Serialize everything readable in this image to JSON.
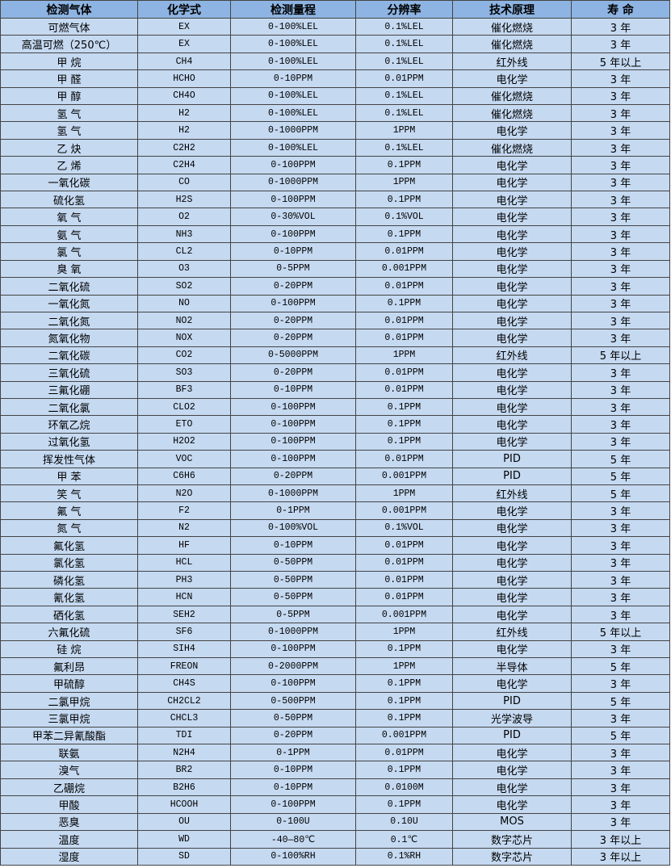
{
  "table": {
    "headers": [
      "检测气体",
      "化学式",
      "检测量程",
      "分辨率",
      "技术原理",
      "寿 命"
    ],
    "rows": [
      [
        "可燃气体",
        "EX",
        "0-100%LEL",
        "0.1%LEL",
        "催化燃烧",
        "3 年"
      ],
      [
        "高温可燃（250℃）",
        "EX",
        "0-100%LEL",
        "0.1%LEL",
        "催化燃烧",
        "3 年"
      ],
      [
        "甲 烷",
        "CH4",
        "0-100%LEL",
        "0.1%LEL",
        "红外线",
        "5 年以上"
      ],
      [
        "甲 醛",
        "HCHO",
        "0-10PPM",
        "0.01PPM",
        "电化学",
        "3 年"
      ],
      [
        "甲 醇",
        "CH4O",
        "0-100%LEL",
        "0.1%LEL",
        "催化燃烧",
        "3 年"
      ],
      [
        "氢 气",
        "H2",
        "0-100%LEL",
        "0.1%LEL",
        "催化燃烧",
        "3 年"
      ],
      [
        "氢 气",
        "H2",
        "0-1000PPM",
        "1PPM",
        "电化学",
        "3 年"
      ],
      [
        "乙 炔",
        "C2H2",
        "0-100%LEL",
        "0.1%LEL",
        "催化燃烧",
        "3 年"
      ],
      [
        "乙 烯",
        "C2H4",
        "0-100PPM",
        "0.1PPM",
        "电化学",
        "3 年"
      ],
      [
        "一氧化碳",
        "CO",
        "0-1000PPM",
        "1PPM",
        "电化学",
        "3 年"
      ],
      [
        "硫化氢",
        "H2S",
        "0-100PPM",
        "0.1PPM",
        "电化学",
        "3 年"
      ],
      [
        "氧 气",
        "O2",
        "0-30%VOL",
        "0.1%VOL",
        "电化学",
        "3 年"
      ],
      [
        "氨 气",
        "NH3",
        "0-100PPM",
        "0.1PPM",
        "电化学",
        "3 年"
      ],
      [
        "氯 气",
        "CL2",
        "0-10PPM",
        "0.01PPM",
        "电化学",
        "3 年"
      ],
      [
        "臭 氧",
        "O3",
        "0-5PPM",
        "0.001PPM",
        "电化学",
        "3 年"
      ],
      [
        "二氧化硫",
        "SO2",
        "0-20PPM",
        "0.01PPM",
        "电化学",
        "3 年"
      ],
      [
        "一氧化氮",
        "NO",
        "0-100PPM",
        "0.1PPM",
        "电化学",
        "3 年"
      ],
      [
        "二氧化氮",
        "NO2",
        "0-20PPM",
        "0.01PPM",
        "电化学",
        "3 年"
      ],
      [
        "氮氧化物",
        "NOX",
        "0-20PPM",
        "0.01PPM",
        "电化学",
        "3 年"
      ],
      [
        "二氧化碳",
        "CO2",
        "0-5000PPM",
        "1PPM",
        "红外线",
        "5 年以上"
      ],
      [
        "三氧化硫",
        "SO3",
        "0-20PPM",
        "0.01PPM",
        "电化学",
        "3 年"
      ],
      [
        "三氟化硼",
        "BF3",
        "0-10PPM",
        "0.01PPM",
        "电化学",
        "3 年"
      ],
      [
        "二氧化氯",
        "CLO2",
        "0-100PPM",
        "0.1PPM",
        "电化学",
        "3 年"
      ],
      [
        "环氧乙烷",
        "ETO",
        "0-100PPM",
        "0.1PPM",
        "电化学",
        "3 年"
      ],
      [
        "过氧化氢",
        "H2O2",
        "0-100PPM",
        "0.1PPM",
        "电化学",
        "3 年"
      ],
      [
        "挥发性气体",
        "VOC",
        "0-100PPM",
        "0.01PPM",
        "PID",
        "5 年"
      ],
      [
        "甲 苯",
        "C6H6",
        "0-20PPM",
        "0.001PPM",
        "PID",
        "5 年"
      ],
      [
        "笑 气",
        "N2O",
        "0-1000PPM",
        "1PPM",
        "红外线",
        "5 年"
      ],
      [
        "氟 气",
        "F2",
        "0-1PPM",
        "0.001PPM",
        "电化学",
        "3 年"
      ],
      [
        "氮 气",
        "N2",
        "0-100%VOL",
        "0.1%VOL",
        "电化学",
        "3 年"
      ],
      [
        "氟化氢",
        "HF",
        "0-10PPM",
        "0.01PPM",
        "电化学",
        "3 年"
      ],
      [
        "氯化氢",
        "HCL",
        "0-50PPM",
        "0.01PPM",
        "电化学",
        "3 年"
      ],
      [
        "磷化氢",
        "PH3",
        "0-50PPM",
        "0.01PPM",
        "电化学",
        "3 年"
      ],
      [
        "氰化氢",
        "HCN",
        "0-50PPM",
        "0.01PPM",
        "电化学",
        "3 年"
      ],
      [
        "硒化氢",
        "SEH2",
        "0-5PPM",
        "0.001PPM",
        "电化学",
        "3 年"
      ],
      [
        "六氟化硫",
        "SF6",
        "0-1000PPM",
        "1PPM",
        "红外线",
        "5 年以上"
      ],
      [
        "硅 烷",
        "SIH4",
        "0-100PPM",
        "0.1PPM",
        "电化学",
        "3 年"
      ],
      [
        "氟利昂",
        "FREON",
        "0-2000PPM",
        "1PPM",
        "半导体",
        "5 年"
      ],
      [
        "甲硫醇",
        "CH4S",
        "0-100PPM",
        "0.1PPM",
        "电化学",
        "3 年"
      ],
      [
        "二氯甲烷",
        "CH2CL2",
        "0-500PPM",
        "0.1PPM",
        "PID",
        "5 年"
      ],
      [
        "三氯甲烷",
        "CHCL3",
        "0-50PPM",
        "0.1PPM",
        "光学波导",
        "3 年"
      ],
      [
        "甲苯二异氰酸酯",
        "TDI",
        "0-20PPM",
        "0.001PPM",
        "PID",
        "5 年"
      ],
      [
        "联氨",
        "N2H4",
        "0-1PPM",
        "0.01PPM",
        "电化学",
        "3 年"
      ],
      [
        "溴气",
        "BR2",
        "0-10PPM",
        "0.1PPM",
        "电化学",
        "3 年"
      ],
      [
        "乙硼烷",
        "B2H6",
        "0-10PPM",
        "0.0100M",
        "电化学",
        "3 年"
      ],
      [
        "甲酸",
        "HCOOH",
        "0-100PPM",
        "0.1PPM",
        "电化学",
        "3 年"
      ],
      [
        "恶臭",
        "OU",
        "0-100U",
        "0.10U",
        "MOS",
        "3 年"
      ],
      [
        "温度",
        "WD",
        "-40—80℃",
        "0.1℃",
        "数字芯片",
        "3 年以上"
      ],
      [
        "湿度",
        "SD",
        "0-100%RH",
        "0.1%RH",
        "数字芯片",
        "3 年以上"
      ]
    ]
  },
  "colors": {
    "header_bg": "#8db4e2",
    "body_bg": "#c5d9f1",
    "border": "#444444"
  }
}
